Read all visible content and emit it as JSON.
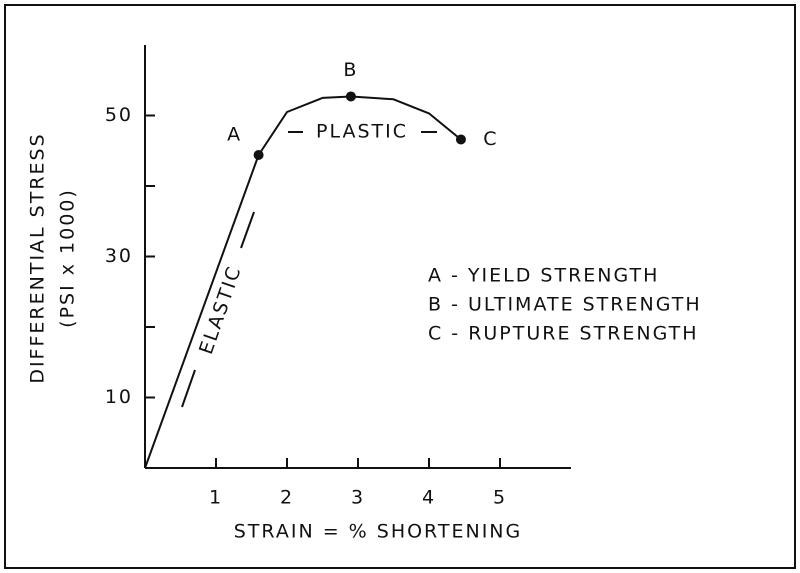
{
  "chart_data": {
    "type": "line",
    "x_label": "STRAIN = % SHORTENING",
    "y_label": [
      "DIFFERENTIAL STRESS",
      "(PSI x 1000)"
    ],
    "xlim": [
      0,
      6
    ],
    "ylim": [
      0,
      60
    ],
    "xticks": [
      1,
      2,
      3,
      4,
      5
    ],
    "yticks": [
      10,
      30,
      50
    ],
    "yminor": [
      20,
      40
    ],
    "color": "#111111",
    "x": [
      0,
      1.6,
      2,
      2.5,
      2.9,
      3.5,
      4,
      4.45
    ],
    "values": [
      0,
      44.4,
      50.5,
      52.5,
      52.7,
      52.3,
      50.3,
      46.6
    ],
    "points": [
      {
        "label": "A",
        "x": 1.6,
        "y": 44.4
      },
      {
        "label": "B",
        "x": 2.9,
        "y": 52.7
      },
      {
        "label": "C",
        "x": 4.45,
        "y": 46.6
      }
    ],
    "annotations": [
      "PLASTIC",
      "ELASTIC"
    ],
    "legend": [
      "A - YIELD STRENGTH",
      "B - ULTIMATE STRENGTH",
      "C - RUPTURE STRENGTH"
    ]
  }
}
